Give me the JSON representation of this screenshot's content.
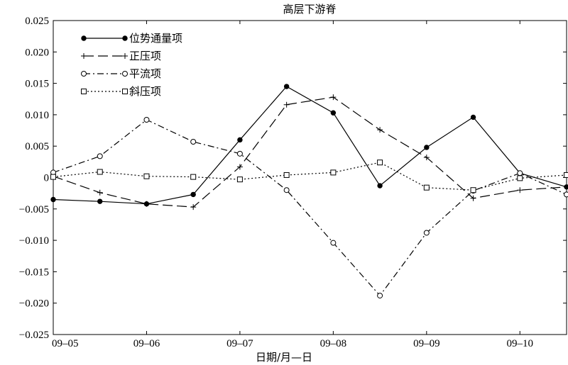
{
  "chart_data": {
    "type": "line",
    "title": "高层下游脊",
    "xlabel": "日期/月—日",
    "ylabel": "",
    "x_range": [
      0,
      11
    ],
    "x_ticks": [
      {
        "x": 0,
        "label": "09–05"
      },
      {
        "x": 2,
        "label": "09–06"
      },
      {
        "x": 4,
        "label": "09–07"
      },
      {
        "x": 6,
        "label": "09–08"
      },
      {
        "x": 8,
        "label": "09–09"
      },
      {
        "x": 10,
        "label": "09–10"
      }
    ],
    "ylim": [
      -0.025,
      0.025
    ],
    "y_ticks": [
      {
        "value": 0.025,
        "label": "0.025"
      },
      {
        "value": 0.02,
        "label": "0.020"
      },
      {
        "value": 0.015,
        "label": "0.015"
      },
      {
        "value": 0.01,
        "label": "0.010"
      },
      {
        "value": 0.005,
        "label": "0.005"
      },
      {
        "value": 0,
        "label": "0"
      },
      {
        "value": -0.005,
        "label": "−0.005"
      },
      {
        "value": -0.01,
        "label": "−0.010"
      },
      {
        "value": -0.015,
        "label": "−0.015"
      },
      {
        "value": -0.02,
        "label": "−0.020"
      },
      {
        "value": -0.025,
        "label": "−0.025"
      }
    ],
    "grid": false,
    "legend_position": "top-left",
    "series": [
      {
        "name": "位势通量项",
        "dash": "solid",
        "marker": "filled-circle",
        "x": [
          0,
          1,
          2,
          3,
          4,
          5,
          6,
          7,
          8,
          9,
          10,
          11
        ],
        "values": [
          -0.0035,
          -0.0038,
          -0.0042,
          -0.0027,
          0.006,
          0.0145,
          0.0103,
          -0.0013,
          0.0048,
          0.0096,
          0.0007,
          -0.0015
        ]
      },
      {
        "name": "正压项",
        "dash": "long-dash",
        "marker": "plus",
        "x": [
          0,
          1,
          2,
          3,
          4,
          5,
          6,
          7,
          8,
          9,
          10,
          11
        ],
        "values": [
          0.0002,
          -0.0024,
          -0.0042,
          -0.0047,
          0.0017,
          0.0116,
          0.0128,
          0.0076,
          0.0032,
          -0.0033,
          -0.002,
          -0.0015
        ]
      },
      {
        "name": "平流项",
        "dash": "dash-dot",
        "marker": "open-circle",
        "x": [
          0,
          1,
          2,
          3,
          4,
          5,
          6,
          7,
          8,
          9,
          10,
          11
        ],
        "values": [
          0.0008,
          0.0034,
          0.0092,
          0.0057,
          0.0038,
          -0.002,
          -0.0104,
          -0.0188,
          -0.0088,
          -0.0021,
          0.0007,
          -0.0027
        ]
      },
      {
        "name": "斜压项",
        "dash": "dotted",
        "marker": "open-square",
        "x": [
          0,
          1,
          2,
          3,
          4,
          5,
          6,
          7,
          8,
          9,
          10,
          11
        ],
        "values": [
          0.0001,
          0.0009,
          0.0002,
          0.0001,
          -0.0003,
          0.0004,
          0.0008,
          0.0024,
          -0.0016,
          -0.002,
          -0.0001,
          0.0004
        ]
      }
    ]
  }
}
